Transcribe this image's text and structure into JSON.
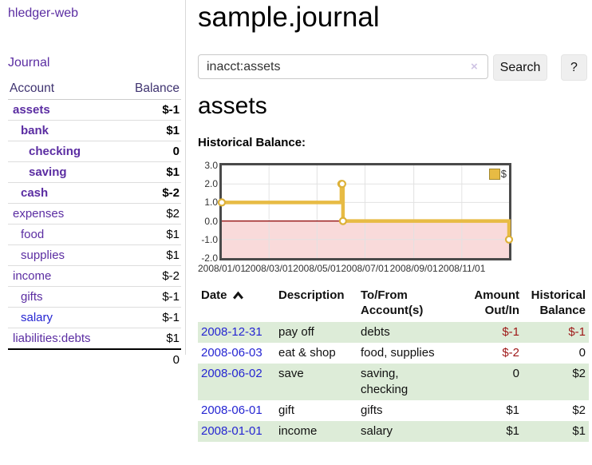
{
  "colors": {
    "link_purple": "#5b2da2",
    "link_blue": "#2525d2",
    "negative_dark_red": "#9e1717",
    "negative_light_red": "#bf8080",
    "row_green": "#ddecd8",
    "chart_line_gold": "#e7bb44",
    "chart_negative_fill": "#f9dada",
    "chart_zero_line": "#8b0000"
  },
  "brand": {
    "label": "hledger-web"
  },
  "sidebar": {
    "journal_link": "Journal",
    "accounts_table": {
      "col_account": "Account",
      "col_balance": "Balance",
      "rows": [
        {
          "name": "assets",
          "depth": 0,
          "bold": true,
          "balance": "$-1",
          "balance_style": "neg"
        },
        {
          "name": "bank",
          "depth": 1,
          "bold": true,
          "balance": "$1",
          "balance_style": "pos"
        },
        {
          "name": "checking",
          "depth": 2,
          "bold": true,
          "balance": "0",
          "balance_style": "pos"
        },
        {
          "name": "saving",
          "depth": 2,
          "bold": true,
          "balance": "$1",
          "balance_style": "pos"
        },
        {
          "name": "cash",
          "depth": 1,
          "bold": true,
          "balance": "$-2",
          "balance_style": "neg"
        },
        {
          "name": "expenses",
          "depth": 0,
          "bold": false,
          "balance": "$2",
          "balance_style": "pos"
        },
        {
          "name": "food",
          "depth": 1,
          "bold": false,
          "balance": "$1",
          "balance_style": "pos"
        },
        {
          "name": "supplies",
          "depth": 1,
          "bold": false,
          "balance": "$1",
          "balance_style": "pos"
        },
        {
          "name": "income",
          "depth": 0,
          "bold": false,
          "balance": "$-2",
          "balance_style": "neglight"
        },
        {
          "name": "gifts",
          "depth": 1,
          "bold": false,
          "balance": "$-1",
          "balance_style": "neglight"
        },
        {
          "name": "salary",
          "depth": 1,
          "bold": false,
          "color": "blue",
          "balance": "$-1",
          "balance_style": "neglight"
        },
        {
          "name": "liabilities:debts",
          "depth": 0,
          "bold": false,
          "balance": "$1",
          "balance_style": "pos"
        }
      ],
      "total": "0"
    }
  },
  "main": {
    "title": "sample.journal",
    "search": {
      "value": "inacct:assets",
      "clear_icon": "×",
      "search_button": "Search",
      "help_button": "?"
    },
    "account_heading": "assets",
    "chart_heading": "Historical Balance:"
  },
  "chart_data": {
    "type": "line",
    "title": "Historical Balance",
    "step": true,
    "series": [
      {
        "name": "$",
        "points": [
          [
            "2008-01-01",
            1
          ],
          [
            "2008-06-01",
            2
          ],
          [
            "2008-06-02",
            2
          ],
          [
            "2008-06-03",
            0
          ],
          [
            "2008-12-31",
            -1
          ]
        ]
      }
    ],
    "x_domain": [
      "2008-01-01",
      "2008-12-31"
    ],
    "x_ticks": [
      {
        "date": "2008-01-01",
        "label": "2008/01/01"
      },
      {
        "date": "2008-03-01",
        "label": "2008/03/01"
      },
      {
        "date": "2008-05-01",
        "label": "2008/05/01"
      },
      {
        "date": "2008-07-01",
        "label": "2008/07/01"
      },
      {
        "date": "2008-09-01",
        "label": "2008/09/01"
      },
      {
        "date": "2008-11-01",
        "label": "2008/11/01"
      }
    ],
    "y_ticks": [
      {
        "value": 3,
        "label": "3.0"
      },
      {
        "value": 2,
        "label": "2.0"
      },
      {
        "value": 1,
        "label": "1.0"
      },
      {
        "value": 0,
        "label": "0.0"
      },
      {
        "value": -1,
        "label": "-1.0"
      },
      {
        "value": -2,
        "label": "-2.0"
      }
    ],
    "ylim": [
      -2,
      3
    ],
    "grid": true,
    "legend_position": "top-right",
    "line_color": "#e7bb44",
    "marker_color": "#ddb139",
    "negative_region_color": "#f9dada",
    "zero_line_color": "#8b0000"
  },
  "register": {
    "headers": {
      "date": "Date",
      "description": "Description",
      "accounts": "To/From Account(s)",
      "amount": "Amount Out/In",
      "balance": "Historical Balance"
    },
    "rows": [
      {
        "date": "2008-12-31",
        "description": "pay off",
        "accounts": [
          "debts"
        ],
        "amount": "$-1",
        "amount_neg": true,
        "balance": "$-1",
        "balance_neg": true
      },
      {
        "date": "2008-06-03",
        "description": "eat & shop",
        "accounts": [
          "food, supplies"
        ],
        "amount": "$-2",
        "amount_neg": true,
        "balance": "0",
        "balance_neg": false
      },
      {
        "date": "2008-06-02",
        "description": "save",
        "accounts": [
          "saving,",
          "checking"
        ],
        "amount": "0",
        "amount_neg": false,
        "balance": "$2",
        "balance_neg": false
      },
      {
        "date": "2008-06-01",
        "description": "gift",
        "accounts": [
          "gifts"
        ],
        "amount": "$1",
        "amount_neg": false,
        "balance": "$2",
        "balance_neg": false
      },
      {
        "date": "2008-01-01",
        "description": "income",
        "accounts": [
          "salary"
        ],
        "amount": "$1",
        "amount_neg": false,
        "balance": "$1",
        "balance_neg": false
      }
    ]
  }
}
